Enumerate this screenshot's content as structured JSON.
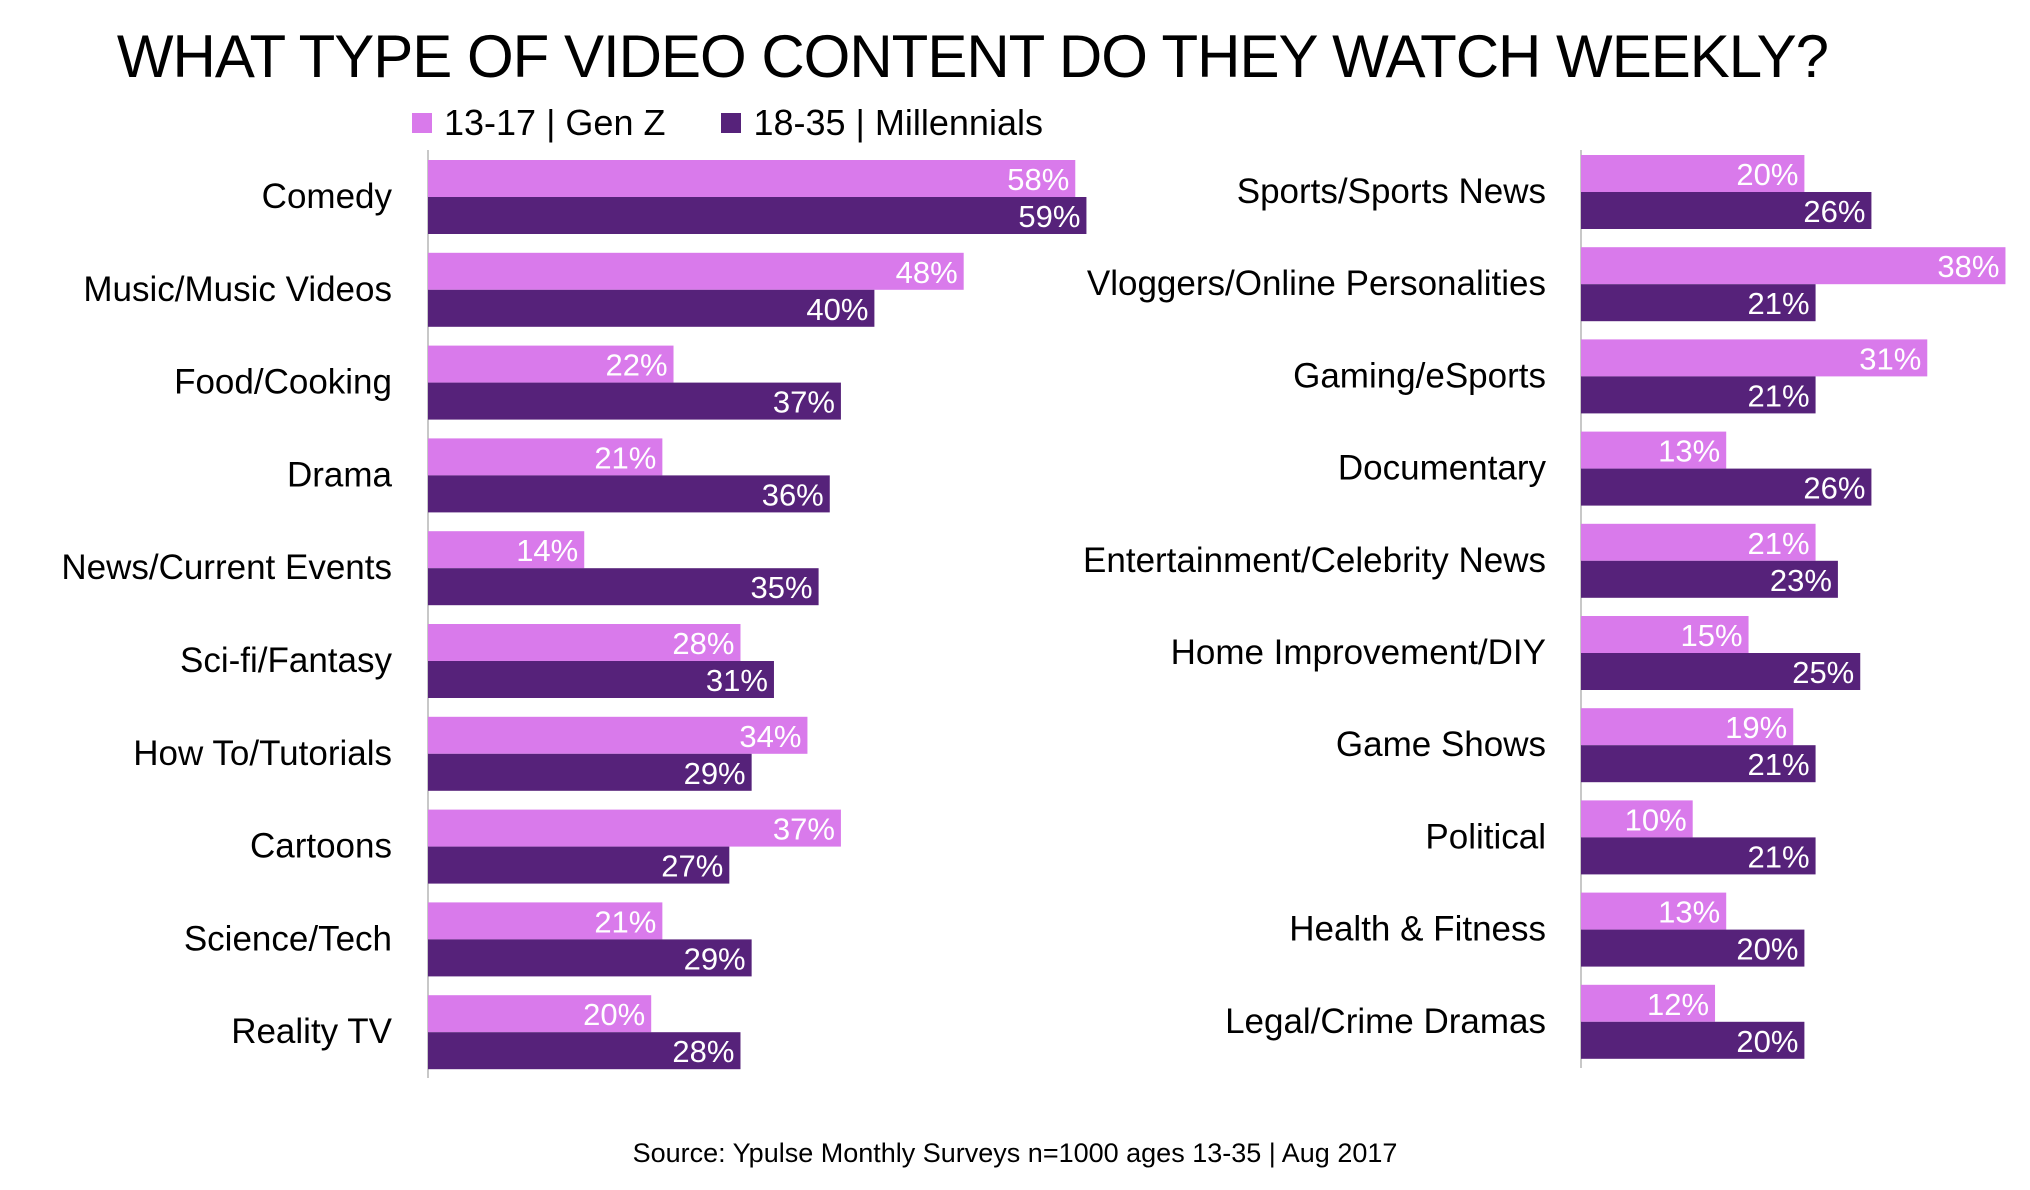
{
  "title": "WHAT TYPE OF VIDEO CONTENT DO THEY WATCH WEEKLY?",
  "source": "Source: Ypulse Monthly Surveys n=1000 ages 13-35 | Aug 2017",
  "legend": [
    {
      "label": "13-17 | Gen Z",
      "color": "#d97aeb"
    },
    {
      "label": "18-35 | Millennials",
      "color": "#56227a"
    }
  ],
  "chart_data": [
    {
      "type": "bar",
      "orientation": "horizontal",
      "categories": [
        "Comedy",
        "Music/Music Videos",
        "Food/Cooking",
        "Drama",
        "News/Current Events",
        "Sci-fi/Fantasy",
        "How To/Tutorials",
        "Cartoons",
        "Science/Tech",
        "Reality TV"
      ],
      "series": [
        {
          "name": "13-17 | Gen Z",
          "color": "#d97aeb",
          "values": [
            58,
            48,
            22,
            21,
            14,
            28,
            34,
            37,
            21,
            20
          ]
        },
        {
          "name": "18-35 | Millennials",
          "color": "#56227a",
          "values": [
            59,
            40,
            37,
            36,
            35,
            31,
            29,
            27,
            29,
            28
          ]
        }
      ],
      "value_suffix": "%",
      "xlim": [
        0,
        60
      ]
    },
    {
      "type": "bar",
      "orientation": "horizontal",
      "categories": [
        "Sports/Sports News",
        "Vloggers/Online Personalities",
        "Gaming/eSports",
        "Documentary",
        "Entertainment/Celebrity News",
        "Home Improvement/DIY",
        "Game Shows",
        "Political",
        "Health & Fitness",
        "Legal/Crime Dramas"
      ],
      "series": [
        {
          "name": "13-17 | Gen Z",
          "color": "#d97aeb",
          "values": [
            20,
            38,
            31,
            13,
            21,
            15,
            19,
            10,
            13,
            12
          ]
        },
        {
          "name": "18-35 | Millennials",
          "color": "#56227a",
          "values": [
            26,
            21,
            21,
            26,
            23,
            25,
            21,
            21,
            20,
            20
          ]
        }
      ],
      "value_suffix": "%",
      "xlim": [
        0,
        38
      ]
    }
  ]
}
